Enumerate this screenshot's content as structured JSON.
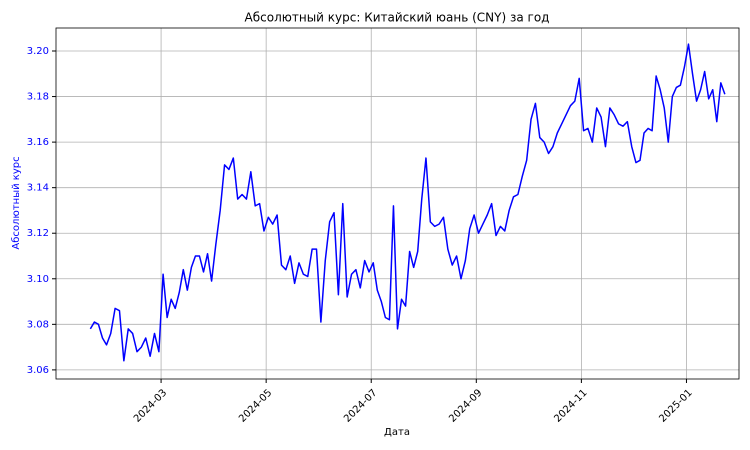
{
  "chart_data": {
    "type": "line",
    "title": "Абсолютный курс: Китайский юань (CNY) за год",
    "x_label": "Дата",
    "y_label": "Абсолютный курс",
    "color": "#0000ff",
    "grid": true,
    "x": [
      "2024-01",
      "2024-01",
      "2024-01",
      "2024-01",
      "2024-01",
      "2024-02",
      "2024-02",
      "2024-02",
      "2024-02",
      "2024-02",
      "2024-02",
      "2024-02",
      "2024-02",
      "2024-02",
      "2024-02",
      "2024-02",
      "2024-02",
      "2024-03",
      "2024-03",
      "2024-03",
      "2024-03",
      "2024-03",
      "2024-03",
      "2024-03",
      "2024-03",
      "2024-03",
      "2024-03",
      "2024-03",
      "2024-03",
      "2024-03",
      "2024-04",
      "2024-04",
      "2024-04",
      "2024-04",
      "2024-04",
      "2024-04",
      "2024-04",
      "2024-04",
      "2024-04",
      "2024-04",
      "2024-04",
      "2024-04",
      "2024-05",
      "2024-05",
      "2024-05",
      "2024-05",
      "2024-05",
      "2024-05",
      "2024-05",
      "2024-05",
      "2024-05",
      "2024-05",
      "2024-05",
      "2024-05",
      "2024-06",
      "2024-06",
      "2024-06",
      "2024-06",
      "2024-06",
      "2024-06",
      "2024-06",
      "2024-06",
      "2024-06",
      "2024-06",
      "2024-06",
      "2024-06",
      "2024-07",
      "2024-07",
      "2024-07",
      "2024-07",
      "2024-07",
      "2024-07",
      "2024-07",
      "2024-07",
      "2024-07",
      "2024-07",
      "2024-07",
      "2024-07",
      "2024-07",
      "2024-08",
      "2024-08",
      "2024-08",
      "2024-08",
      "2024-08",
      "2024-08",
      "2024-08",
      "2024-08",
      "2024-08",
      "2024-08",
      "2024-08",
      "2024-08",
      "2024-09",
      "2024-09",
      "2024-09",
      "2024-09",
      "2024-09",
      "2024-09",
      "2024-09",
      "2024-09",
      "2024-09",
      "2024-09",
      "2024-09",
      "2024-09",
      "2024-10",
      "2024-10",
      "2024-10",
      "2024-10",
      "2024-10",
      "2024-10",
      "2024-10",
      "2024-10",
      "2024-10",
      "2024-10",
      "2024-10",
      "2024-10",
      "2024-11",
      "2024-11",
      "2024-11",
      "2024-11",
      "2024-11",
      "2024-11",
      "2024-11",
      "2024-11",
      "2024-11",
      "2024-11",
      "2024-11",
      "2024-11",
      "2024-12",
      "2024-12",
      "2024-12",
      "2024-12",
      "2024-12",
      "2024-12",
      "2024-12",
      "2024-12",
      "2024-12",
      "2024-12",
      "2024-12",
      "2024-12",
      "2024-12",
      "2025-01",
      "2025-01",
      "2025-01",
      "2025-01",
      "2025-01",
      "2025-01",
      "2025-01",
      "2025-01",
      "2025-01",
      "2025-01"
    ],
    "values": [
      3.078,
      3.081,
      3.08,
      3.074,
      3.071,
      3.076,
      3.087,
      3.086,
      3.064,
      3.078,
      3.076,
      3.068,
      3.07,
      3.074,
      3.066,
      3.076,
      3.068,
      3.102,
      3.083,
      3.091,
      3.087,
      3.094,
      3.104,
      3.095,
      3.105,
      3.11,
      3.11,
      3.103,
      3.111,
      3.099,
      3.115,
      3.13,
      3.15,
      3.148,
      3.153,
      3.135,
      3.137,
      3.135,
      3.147,
      3.132,
      3.133,
      3.121,
      3.127,
      3.124,
      3.128,
      3.106,
      3.104,
      3.11,
      3.098,
      3.107,
      3.102,
      3.101,
      3.113,
      3.113,
      3.081,
      3.108,
      3.125,
      3.129,
      3.093,
      3.133,
      3.092,
      3.102,
      3.104,
      3.096,
      3.108,
      3.103,
      3.107,
      3.095,
      3.09,
      3.083,
      3.082,
      3.132,
      3.078,
      3.091,
      3.088,
      3.112,
      3.105,
      3.112,
      3.135,
      3.153,
      3.125,
      3.123,
      3.124,
      3.127,
      3.113,
      3.106,
      3.11,
      3.1,
      3.108,
      3.122,
      3.128,
      3.12,
      3.124,
      3.128,
      3.133,
      3.119,
      3.123,
      3.121,
      3.13,
      3.136,
      3.137,
      3.145,
      3.152,
      3.17,
      3.177,
      3.162,
      3.16,
      3.155,
      3.158,
      3.164,
      3.168,
      3.172,
      3.176,
      3.178,
      3.188,
      3.165,
      3.166,
      3.16,
      3.175,
      3.171,
      3.158,
      3.175,
      3.172,
      3.168,
      3.167,
      3.169,
      3.158,
      3.151,
      3.152,
      3.164,
      3.166,
      3.165,
      3.189,
      3.183,
      3.175,
      3.16,
      3.18,
      3.184,
      3.185,
      3.193,
      3.203,
      3.19,
      3.178,
      3.183,
      3.191,
      3.179,
      3.183,
      3.169,
      3.186,
      3.181
    ],
    "xlim": [
      "2024-01",
      "2025-02"
    ],
    "xticks": [
      "2024-03",
      "2024-05",
      "2024-07",
      "2024-09",
      "2024-11",
      "2025-01"
    ],
    "ylim": [
      3.056,
      3.2101
    ],
    "yticks": [
      3.06,
      3.08,
      {
        "value": 3.1,
        "label": "3.10"
      },
      3.12,
      3.14,
      3.16,
      3.18,
      {
        "value": 3.2,
        "label": "3.20"
      }
    ]
  }
}
